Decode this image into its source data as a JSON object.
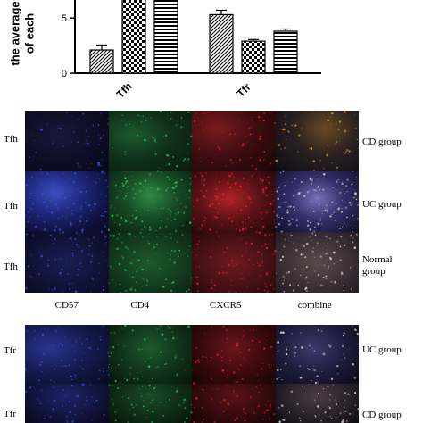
{
  "chart_data": {
    "type": "bar",
    "ylabel": "the average of each",
    "categories": [
      "Tfh",
      "Tfr"
    ],
    "ylim": [
      0,
      8
    ],
    "yticks": [
      0,
      5
    ],
    "series": [
      {
        "pattern": "diagonal-hatch",
        "values": [
          2.1,
          5.3
        ],
        "errors": [
          0.45,
          0.4
        ]
      },
      {
        "pattern": "checkerboard",
        "values": [
          7.5,
          2.9
        ],
        "errors": [
          0.2,
          0.15
        ]
      },
      {
        "pattern": "horizontal-stripes",
        "values": [
          7.5,
          3.8
        ],
        "errors": [
          0.2,
          0.2
        ]
      }
    ],
    "grid": false
  },
  "micrograph_panel_1": {
    "columns": [
      "CD57",
      "CD4",
      "CXCR5",
      "combine"
    ],
    "rows": [
      {
        "cell_label": "Tfh",
        "group": [
          "CD group"
        ],
        "intensity": "low"
      },
      {
        "cell_label": "Tfh",
        "group": [
          "UC group"
        ],
        "intensity": "high"
      },
      {
        "cell_label": "Tfh",
        "group": [
          "Normal",
          "group"
        ],
        "intensity": "medium"
      }
    ]
  },
  "micrograph_panel_2": {
    "rows": [
      {
        "cell_label": "Tfr",
        "group": [
          "UC group"
        ],
        "intensity": "medium"
      },
      {
        "cell_label": "Tfr",
        "group": [
          "CD group"
        ],
        "intensity": "medium"
      }
    ]
  },
  "colors": {
    "CD57": "#3a4fd8",
    "CD4": "#22c45a",
    "CXCR5": "#e8222a",
    "combine": "#e8d2c8",
    "combine_cd": "#e0a040"
  }
}
